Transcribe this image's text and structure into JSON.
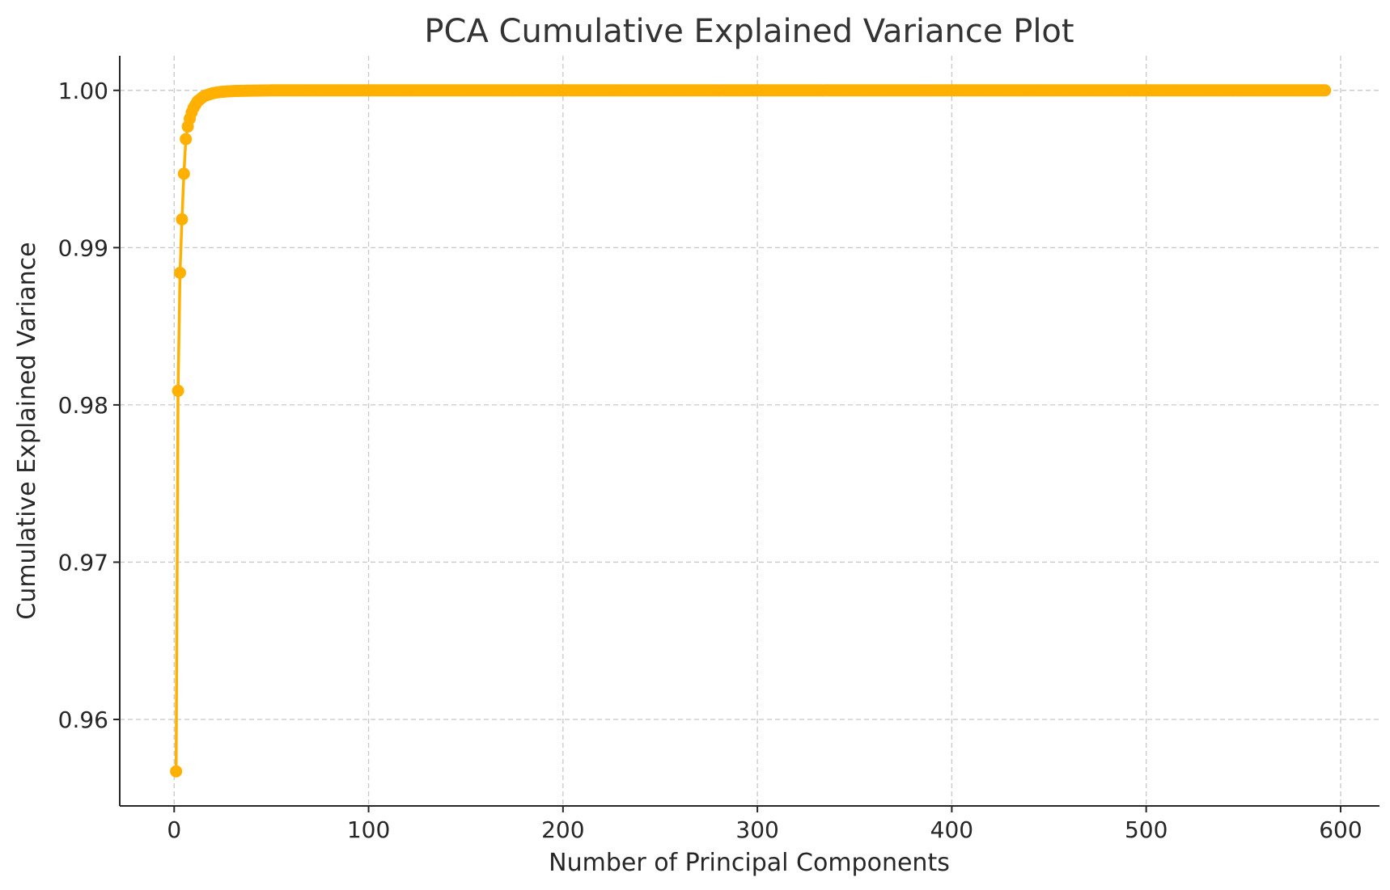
{
  "chart_data": {
    "type": "line",
    "title": "PCA Cumulative Explained Variance Plot",
    "xlabel": "Number of Principal Components",
    "ylabel": "Cumulative Explained Variance",
    "xlim": [
      -28,
      620
    ],
    "ylim": [
      0.9545,
      1.0022
    ],
    "xticks": [
      0,
      100,
      200,
      300,
      400,
      500,
      600
    ],
    "xtick_labels": [
      "0",
      "100",
      "200",
      "300",
      "400",
      "500",
      "600"
    ],
    "yticks": [
      0.96,
      0.97,
      0.98,
      0.99,
      1.0
    ],
    "ytick_labels": [
      "0.96",
      "0.97",
      "0.98",
      "0.99",
      "1.00"
    ],
    "grid": true,
    "marker": "circle",
    "n_components": 592,
    "series": [
      {
        "color": "#FFB000",
        "x": [
          1,
          2,
          3,
          4,
          5,
          6,
          7,
          8,
          9,
          10,
          11,
          12,
          13,
          14,
          15,
          16,
          18,
          20,
          22,
          25,
          28,
          31,
          35,
          40,
          45,
          50,
          592
        ],
        "y": [
          0.9567,
          0.9809,
          0.9884,
          0.9918,
          0.9947,
          0.9969,
          0.9977,
          0.9982,
          0.9986,
          0.9989,
          0.9991,
          0.9993,
          0.9994,
          0.9995,
          0.9996,
          0.99966,
          0.99975,
          0.99982,
          0.99987,
          0.99991,
          0.99994,
          0.99996,
          0.99997,
          0.99998,
          0.99999,
          1.0,
          1.0
        ]
      }
    ]
  },
  "colors": {
    "line": "#FFB000",
    "grid": "#c8c8c8",
    "axis": "#262626",
    "title": "#333333"
  }
}
